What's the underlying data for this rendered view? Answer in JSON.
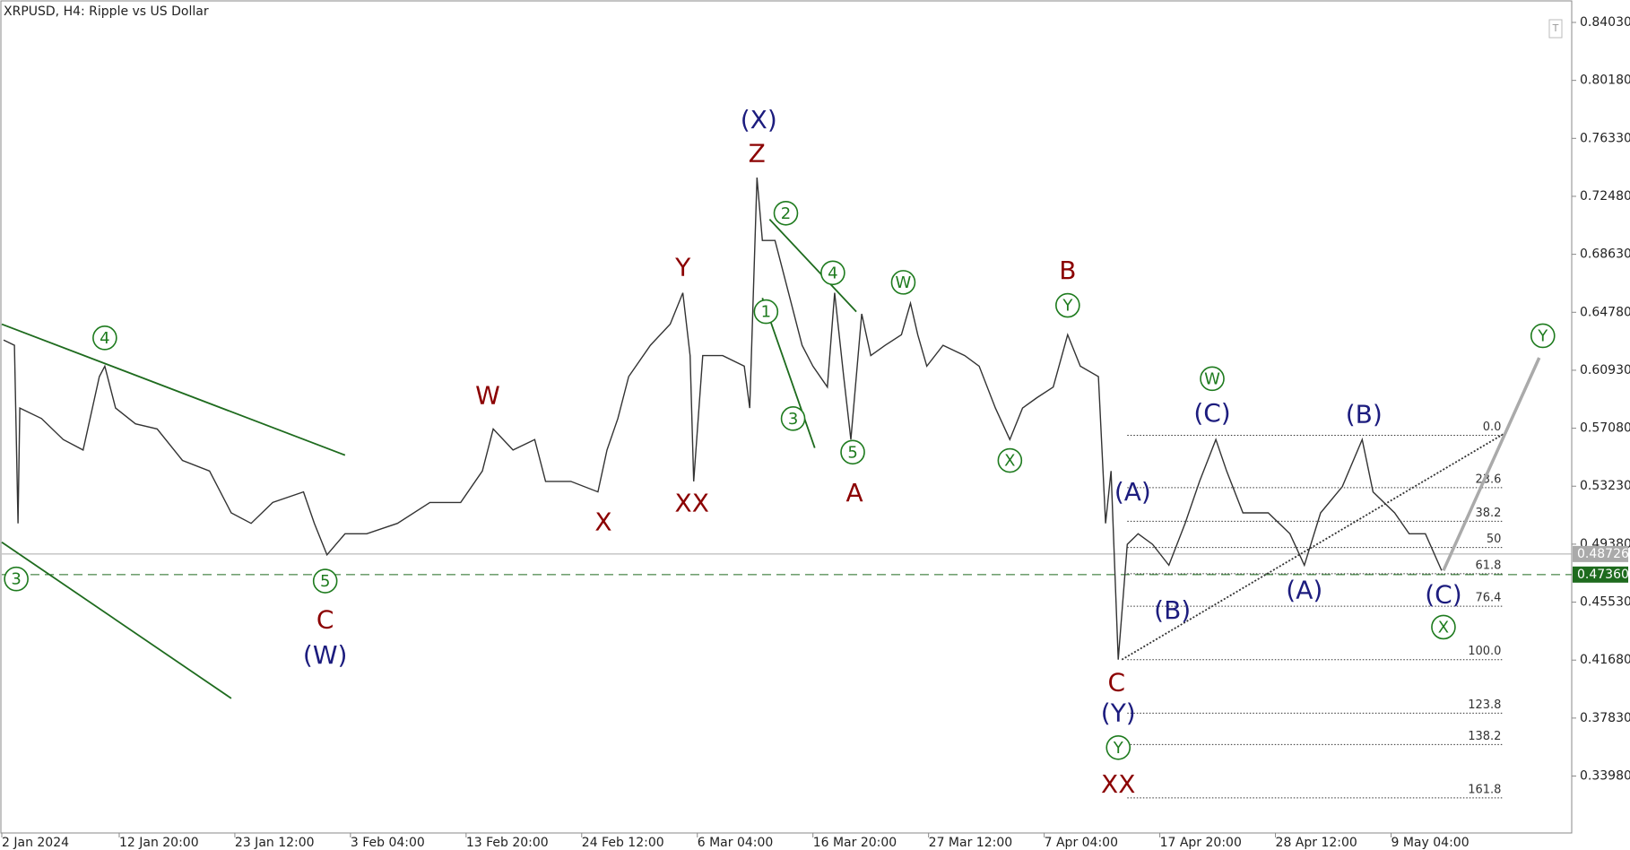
{
  "chart_data": {
    "type": "line",
    "title": "XRPUSD, H4:  Ripple vs US Dollar",
    "color": "#333333",
    "xlim": [
      0,
      869
    ],
    "ylim": [
      0.302,
      0.854
    ],
    "xticks": [
      {
        "value": 0,
        "label": "2 Jan 2024"
      },
      {
        "value": 65,
        "label": "12 Jan 20:00"
      },
      {
        "value": 129,
        "label": "23 Jan 12:00"
      },
      {
        "value": 193,
        "label": "3 Feb 04:00"
      },
      {
        "value": 257,
        "label": "13 Feb 20:00"
      },
      {
        "value": 321,
        "label": "24 Feb 12:00"
      },
      {
        "value": 385,
        "label": "6 Mar 04:00"
      },
      {
        "value": 449,
        "label": "16 Mar 20:00"
      },
      {
        "value": 513,
        "label": "27 Mar 12:00"
      },
      {
        "value": 577,
        "label": "7 Apr 04:00"
      },
      {
        "value": 641,
        "label": "17 Apr 20:00"
      },
      {
        "value": 705,
        "label": "28 Apr 12:00"
      },
      {
        "value": 769,
        "label": "9 May 04:00"
      }
    ],
    "yticks": [
      {
        "value": 0.8403,
        "label": "0.84030"
      },
      {
        "value": 0.8018,
        "label": "0.80180"
      },
      {
        "value": 0.7633,
        "label": "0.76330"
      },
      {
        "value": 0.7248,
        "label": "0.72480"
      },
      {
        "value": 0.6863,
        "label": "0.68630"
      },
      {
        "value": 0.6478,
        "label": "0.64780"
      },
      {
        "value": 0.6093,
        "label": "0.60930"
      },
      {
        "value": 0.5708,
        "label": "0.57080"
      },
      {
        "value": 0.5323,
        "label": "0.53230"
      },
      {
        "value": 0.4938,
        "label": "0.49380"
      },
      {
        "value": 0.4553,
        "label": "0.45530"
      },
      {
        "value": 0.4168,
        "label": "0.41680"
      },
      {
        "value": 0.3783,
        "label": "0.37830"
      },
      {
        "value": 0.3398,
        "label": "0.33980"
      }
    ],
    "x": [
      1,
      7,
      9,
      10,
      22,
      34,
      45,
      54,
      57,
      63,
      74,
      86,
      100,
      115,
      127,
      138,
      150,
      167,
      173,
      180,
      190,
      202,
      219,
      237,
      254,
      266,
      272,
      283,
      295,
      301,
      315,
      330,
      335,
      341,
      347,
      359,
      370,
      377,
      381,
      383,
      388,
      399,
      411,
      414,
      418,
      421,
      428,
      437,
      443,
      449,
      457,
      461,
      466,
      470,
      476,
      481,
      489,
      498,
      503,
      507,
      512,
      521,
      533,
      541,
      550,
      558,
      565,
      573,
      582,
      590,
      597,
      607,
      611,
      614,
      618,
      623,
      629,
      637,
      646,
      655,
      663,
      672,
      678,
      687,
      701,
      713,
      721,
      730,
      742,
      753,
      759,
      771,
      779,
      788,
      797
    ],
    "values": [
      0.6294,
      0.6259,
      0.5076,
      0.5842,
      0.5772,
      0.5633,
      0.5563,
      0.6051,
      0.612,
      0.5842,
      0.5737,
      0.5703,
      0.5494,
      0.5424,
      0.5146,
      0.5076,
      0.5215,
      0.5285,
      0.5076,
      0.4867,
      0.5007,
      0.5007,
      0.5076,
      0.5215,
      0.5215,
      0.5424,
      0.5703,
      0.5563,
      0.5633,
      0.5355,
      0.5355,
      0.5285,
      0.5563,
      0.5772,
      0.6051,
      0.6259,
      0.6399,
      0.6607,
      0.619,
      0.5355,
      0.619,
      0.619,
      0.612,
      0.5842,
      0.7373,
      0.6955,
      0.6955,
      0.6538,
      0.6259,
      0.612,
      0.5981,
      0.6607,
      0.6051,
      0.5633,
      0.6468,
      0.619,
      0.6259,
      0.6329,
      0.6538,
      0.6329,
      0.612,
      0.6259,
      0.619,
      0.612,
      0.5842,
      0.5633,
      0.5842,
      0.5911,
      0.5981,
      0.6329,
      0.612,
      0.6051,
      0.5076,
      0.5424,
      0.4171,
      0.4937,
      0.5007,
      0.4937,
      0.4798,
      0.5076,
      0.5355,
      0.5633,
      0.5424,
      0.5146,
      0.5146,
      0.5007,
      0.4798,
      0.5146,
      0.532,
      0.5633,
      0.5285,
      0.5146,
      0.5007,
      0.5007,
      0.4763
    ],
    "price_lines": [
      {
        "value": 0.48726,
        "color": "#aaaaaa",
        "dashed": false
      },
      {
        "value": {
          "value": 0.4736,
          "label": "0.47360"
        },
        "color": "#1e6b1e",
        "dashed": true
      }
    ],
    "trendlines": [
      {
        "color": "#1e6b1e",
        "dashed": false,
        "x": [
          0,
          190
        ],
        "y": [
          0.6399,
          0.5529
        ]
      },
      {
        "color": "#1e6b1e",
        "dashed": false,
        "x": [
          0,
          127
        ],
        "y": [
          0.4951,
          0.3914
        ]
      },
      {
        "color": "#1e6b1e",
        "dashed": false,
        "x": [
          425,
          473
        ],
        "y": [
          0.7095,
          0.6482
        ]
      },
      {
        "color": "#1e6b1e",
        "dashed": false,
        "x": [
          421,
          450
        ],
        "y": [
          0.6573,
          0.5577
        ]
      },
      {
        "color": "#333333",
        "dashed": true,
        "x": [
          620,
          831
        ],
        "y": [
          0.4171,
          0.5668
        ]
      },
      {
        "color": "#aaaaaa",
        "dashed": false,
        "x": [
          798,
          851
        ],
        "y": [
          0.4763,
          0.6176
        ]
      }
    ],
    "fibonacci": {
      "x_start": 623,
      "x_end": 831,
      "levels": [
        {
          "label": "0.0",
          "price": 0.5661
        },
        {
          "label": "23.6",
          "price": 0.5313
        },
        {
          "label": "38.2",
          "price": 0.509
        },
        {
          "label": "50",
          "price": 0.4916
        },
        {
          "label": "61.8",
          "price": 0.4742
        },
        {
          "label": "76.4",
          "price": 0.4526
        },
        {
          "label": "100.0",
          "price": 0.4171
        },
        {
          "label": "123.8",
          "price": 0.3816
        },
        {
          "label": "138.2",
          "price": 0.3607
        },
        {
          "label": "161.8",
          "price": 0.3253
        }
      ]
    },
    "annotations": [
      {
        "text": "(X)",
        "x": 419,
        "y": 0.7749,
        "color": "#1c1c7e",
        "circled": false
      },
      {
        "text": "Z",
        "x": 418,
        "y": 0.7526,
        "color": "#8b0000",
        "circled": false
      },
      {
        "text": "Y",
        "x": 377,
        "y": 0.6767,
        "color": "#8b0000",
        "circled": false
      },
      {
        "text": "W",
        "x": 269,
        "y": 0.5918,
        "color": "#8b0000",
        "circled": false
      },
      {
        "text": "X",
        "x": 333,
        "y": 0.5076,
        "color": "#8b0000",
        "circled": false
      },
      {
        "text": "XX",
        "x": 382,
        "y": 0.5201,
        "color": "#8b0000",
        "circled": false
      },
      {
        "text": "A",
        "x": 472,
        "y": 0.5271,
        "color": "#8b0000",
        "circled": false
      },
      {
        "text": "B",
        "x": 590,
        "y": 0.6747,
        "color": "#8b0000",
        "circled": false
      },
      {
        "text": "C",
        "x": 179,
        "y": 0.4429,
        "color": "#8b0000",
        "circled": false
      },
      {
        "text": "(W)",
        "x": 179,
        "y": 0.4192,
        "color": "#1c1c7e",
        "circled": false
      },
      {
        "text": "C",
        "x": 617,
        "y": 0.4011,
        "color": "#8b0000",
        "circled": false
      },
      {
        "text": "(Y)",
        "x": 618,
        "y": 0.381,
        "color": "#1c1c7e",
        "circled": false
      },
      {
        "text": "XX",
        "x": 618,
        "y": 0.3336,
        "color": "#8b0000",
        "circled": false
      },
      {
        "text": "(A)",
        "x": 626,
        "y": 0.5278,
        "color": "#1c1c7e",
        "circled": false
      },
      {
        "text": "(B)",
        "x": 648,
        "y": 0.4492,
        "color": "#1c1c7e",
        "circled": false
      },
      {
        "text": "(C)",
        "x": 670,
        "y": 0.58,
        "color": "#1c1c7e",
        "circled": false
      },
      {
        "text": "(A)",
        "x": 721,
        "y": 0.4624,
        "color": "#1c1c7e",
        "circled": false
      },
      {
        "text": "(B)",
        "x": 754,
        "y": 0.5793,
        "color": "#1c1c7e",
        "circled": false
      },
      {
        "text": "(C)",
        "x": 798,
        "y": 0.4596,
        "color": "#1c1c7e",
        "circled": false
      },
      {
        "text": "4",
        "x": 57,
        "y": 0.6308,
        "color": "#1e7b1e",
        "circled": true
      },
      {
        "text": "3",
        "x": 8,
        "y": 0.4707,
        "color": "#1e7b1e",
        "circled": true
      },
      {
        "text": "5",
        "x": 179,
        "y": 0.4693,
        "color": "#1e7b1e",
        "circled": true
      },
      {
        "text": "1",
        "x": 423,
        "y": 0.6482,
        "color": "#1e7b1e",
        "circled": true
      },
      {
        "text": "2",
        "x": 434,
        "y": 0.7136,
        "color": "#1e7b1e",
        "circled": true
      },
      {
        "text": "3",
        "x": 438,
        "y": 0.5772,
        "color": "#1e7b1e",
        "circled": true
      },
      {
        "text": "4",
        "x": 460,
        "y": 0.674,
        "color": "#1e7b1e",
        "circled": true
      },
      {
        "text": "5",
        "x": 471,
        "y": 0.5549,
        "color": "#1e7b1e",
        "circled": true
      },
      {
        "text": "W",
        "x": 499,
        "y": 0.6677,
        "color": "#1e7b1e",
        "circled": true
      },
      {
        "text": "X",
        "x": 558,
        "y": 0.5494,
        "color": "#1e7b1e",
        "circled": true
      },
      {
        "text": "Y",
        "x": 590,
        "y": 0.6524,
        "color": "#1e7b1e",
        "circled": true
      },
      {
        "text": "W",
        "x": 670,
        "y": 0.6037,
        "color": "#1e7b1e",
        "circled": true
      },
      {
        "text": "Y",
        "x": 618,
        "y": 0.3587,
        "color": "#1e7b1e",
        "circled": true
      },
      {
        "text": "X",
        "x": 798,
        "y": 0.4387,
        "color": "#1e7b1e",
        "circled": true
      },
      {
        "text": "Y",
        "x": 853,
        "y": 0.6322,
        "color": "#1e7b1e",
        "circled": true
      }
    ]
  }
}
